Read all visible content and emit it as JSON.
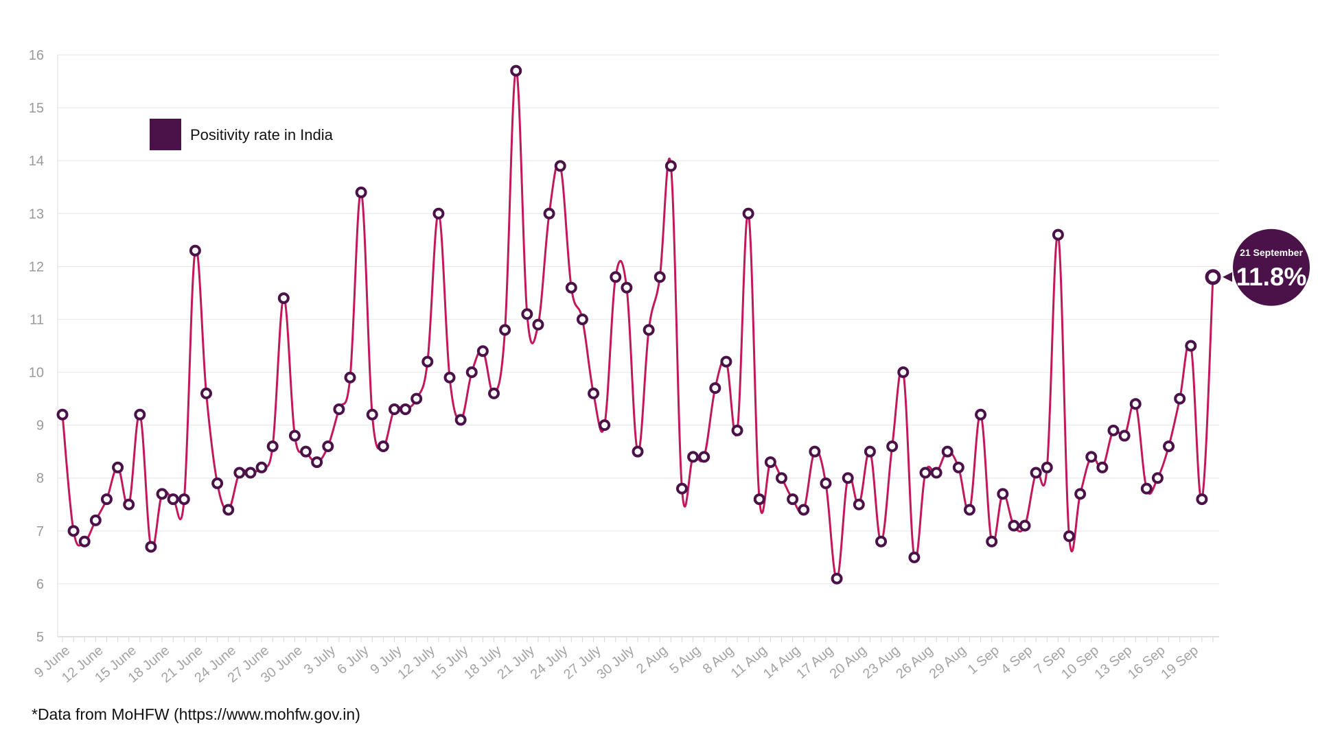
{
  "chart_data": {
    "type": "line",
    "title": "",
    "xlabel": "",
    "ylabel": "",
    "ylim": [
      5,
      16
    ],
    "yticks": [
      5,
      6,
      7,
      8,
      9,
      10,
      11,
      12,
      13,
      14,
      15,
      16
    ],
    "grid": true,
    "legend_position": "top-left",
    "series": [
      {
        "name": "Positivity rate in India",
        "line_color": "#c2185b",
        "marker_color": "#4a1248",
        "values": [
          9.2,
          7.0,
          6.8,
          7.2,
          7.6,
          8.2,
          7.5,
          9.2,
          6.7,
          7.7,
          7.6,
          7.6,
          12.3,
          9.6,
          7.9,
          7.4,
          8.1,
          8.1,
          8.2,
          8.6,
          11.4,
          8.8,
          8.5,
          8.3,
          8.6,
          9.3,
          9.9,
          13.4,
          9.2,
          8.6,
          9.3,
          9.3,
          9.5,
          10.2,
          13.0,
          9.9,
          9.1,
          10.0,
          10.4,
          9.6,
          10.8,
          15.7,
          11.1,
          10.9,
          13.0,
          13.9,
          11.6,
          11.0,
          9.6,
          9.0,
          11.8,
          11.6,
          8.5,
          10.8,
          11.8,
          13.9,
          7.8,
          8.4,
          8.4,
          9.7,
          10.2,
          8.9,
          13.0,
          7.6,
          8.3,
          8.0,
          7.6,
          7.4,
          8.5,
          7.9,
          6.1,
          8.0,
          7.5,
          8.5,
          6.8,
          8.6,
          10.0,
          6.5,
          8.1,
          8.1,
          8.5,
          8.2,
          7.4,
          9.2,
          6.8,
          7.7,
          7.1,
          7.1,
          8.1,
          8.2,
          12.6,
          6.9,
          7.7,
          8.4,
          8.2,
          8.9,
          8.8,
          9.4,
          7.8,
          8.0,
          8.6,
          9.5,
          10.5,
          7.6,
          11.8
        ]
      }
    ],
    "x_tick_labels": [
      "9 June",
      "12 June",
      "15 June",
      "18 June",
      "21 June",
      "24 June",
      "27 June",
      "30 June",
      "3 July",
      "6 July",
      "9 July",
      "12 July",
      "15 July",
      "18 July",
      "21 July",
      "24 July",
      "27 July",
      "30 July",
      "2 Aug",
      "5 Aug",
      "8 Aug",
      "11 Aug",
      "14 Aug",
      "17 Aug",
      "20 Aug",
      "23 Aug",
      "26 Aug",
      "29 Aug",
      "1 Sep",
      "4 Sep",
      "7 Sep",
      "10 Sep",
      "13 Sep",
      "16 Sep",
      "19 Sep"
    ],
    "callout": {
      "date_label": "21 September",
      "value_label": "11.8%",
      "value": 11.8,
      "color": "#4a1248"
    },
    "footnote": "*Data from MoHFW (https://www.mohfw.gov.in)"
  }
}
